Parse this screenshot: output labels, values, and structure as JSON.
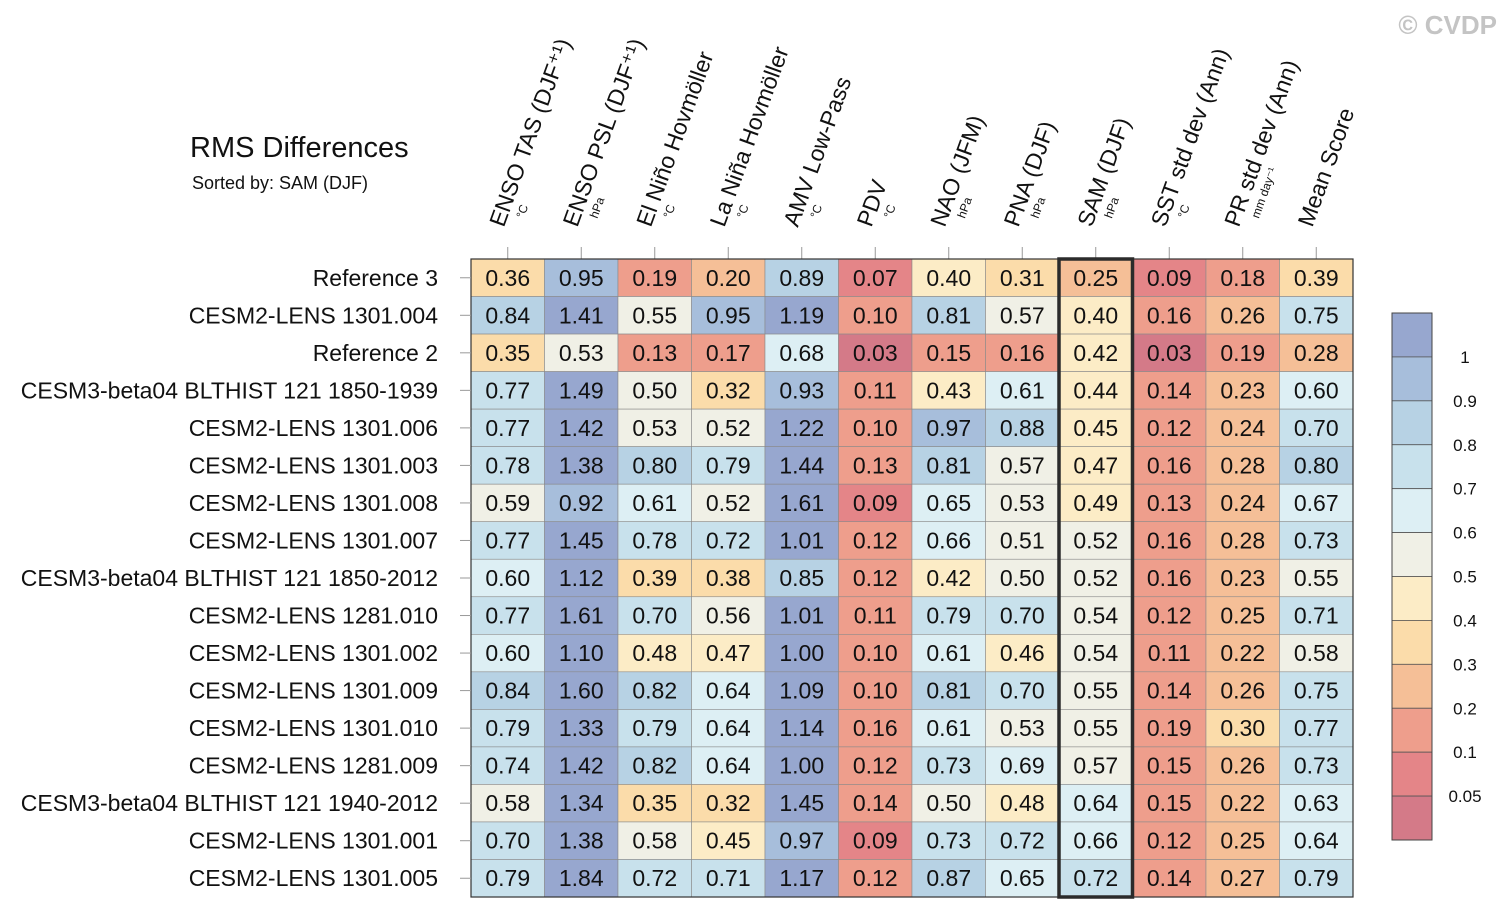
{
  "watermark": "© CVDP",
  "chart_data": {
    "type": "heatmap",
    "title": "RMS Differences",
    "subtitle": "Sorted by: SAM (DJF)",
    "columns": [
      {
        "label": "ENSO TAS (DJF⁺¹)",
        "unit": "°C"
      },
      {
        "label": "ENSO PSL (DJF⁺¹)",
        "unit": "hPa"
      },
      {
        "label": "El Niño Hovmöller",
        "unit": "°C"
      },
      {
        "label": "La Niña Hovmöller",
        "unit": "°C"
      },
      {
        "label": "AMV Low-Pass",
        "unit": "°C"
      },
      {
        "label": "PDV",
        "unit": "°C"
      },
      {
        "label": "NAO (JFM)",
        "unit": "hPa"
      },
      {
        "label": "PNA (DJF)",
        "unit": "hPa"
      },
      {
        "label": "SAM (DJF)",
        "unit": "hPa"
      },
      {
        "label": "SST std dev (Ann)",
        "unit": "°C"
      },
      {
        "label": "PR std dev (Ann)",
        "unit": "mm day⁻¹"
      },
      {
        "label": "Mean Score",
        "unit": ""
      }
    ],
    "highlighted_column": "SAM (DJF)",
    "rows": [
      "Reference 3",
      "CESM2-LENS 1301.004",
      "Reference 2",
      "CESM3-beta04 BLTHIST 121 1850-1939",
      "CESM2-LENS 1301.006",
      "CESM2-LENS 1301.003",
      "CESM2-LENS 1301.008",
      "CESM2-LENS 1301.007",
      "CESM3-beta04 BLTHIST 121 1850-2012",
      "CESM2-LENS 1281.010",
      "CESM2-LENS 1301.002",
      "CESM2-LENS 1301.009",
      "CESM2-LENS 1301.010",
      "CESM2-LENS 1281.009",
      "CESM3-beta04 BLTHIST 121 1940-2012",
      "CESM2-LENS 1301.001",
      "CESM2-LENS 1301.005"
    ],
    "values": [
      [
        "0.36",
        "0.95",
        "0.19",
        "0.20",
        "0.89",
        "0.07",
        "0.40",
        "0.31",
        "0.25",
        "0.09",
        "0.18",
        "0.39"
      ],
      [
        "0.84",
        "1.41",
        "0.55",
        "0.95",
        "1.19",
        "0.10",
        "0.81",
        "0.57",
        "0.40",
        "0.16",
        "0.26",
        "0.75"
      ],
      [
        "0.35",
        "0.53",
        "0.13",
        "0.17",
        "0.68",
        "0.03",
        "0.15",
        "0.16",
        "0.42",
        "0.03",
        "0.19",
        "0.28"
      ],
      [
        "0.77",
        "1.49",
        "0.50",
        "0.32",
        "0.93",
        "0.11",
        "0.43",
        "0.61",
        "0.44",
        "0.14",
        "0.23",
        "0.60"
      ],
      [
        "0.77",
        "1.42",
        "0.53",
        "0.52",
        "1.22",
        "0.10",
        "0.97",
        "0.88",
        "0.45",
        "0.12",
        "0.24",
        "0.70"
      ],
      [
        "0.78",
        "1.38",
        "0.80",
        "0.79",
        "1.44",
        "0.13",
        "0.81",
        "0.57",
        "0.47",
        "0.16",
        "0.28",
        "0.80"
      ],
      [
        "0.59",
        "0.92",
        "0.61",
        "0.52",
        "1.61",
        "0.09",
        "0.65",
        "0.53",
        "0.49",
        "0.13",
        "0.24",
        "0.67"
      ],
      [
        "0.77",
        "1.45",
        "0.78",
        "0.72",
        "1.01",
        "0.12",
        "0.66",
        "0.51",
        "0.52",
        "0.16",
        "0.28",
        "0.73"
      ],
      [
        "0.60",
        "1.12",
        "0.39",
        "0.38",
        "0.85",
        "0.12",
        "0.42",
        "0.50",
        "0.52",
        "0.16",
        "0.23",
        "0.55"
      ],
      [
        "0.77",
        "1.61",
        "0.70",
        "0.56",
        "1.01",
        "0.11",
        "0.79",
        "0.70",
        "0.54",
        "0.12",
        "0.25",
        "0.71"
      ],
      [
        "0.60",
        "1.10",
        "0.48",
        "0.47",
        "1.00",
        "0.10",
        "0.61",
        "0.46",
        "0.54",
        "0.11",
        "0.22",
        "0.58"
      ],
      [
        "0.84",
        "1.60",
        "0.82",
        "0.64",
        "1.09",
        "0.10",
        "0.81",
        "0.70",
        "0.55",
        "0.14",
        "0.26",
        "0.75"
      ],
      [
        "0.79",
        "1.33",
        "0.79",
        "0.64",
        "1.14",
        "0.16",
        "0.61",
        "0.53",
        "0.55",
        "0.19",
        "0.30",
        "0.77"
      ],
      [
        "0.74",
        "1.42",
        "0.82",
        "0.64",
        "1.00",
        "0.12",
        "0.73",
        "0.69",
        "0.57",
        "0.15",
        "0.26",
        "0.73"
      ],
      [
        "0.58",
        "1.34",
        "0.35",
        "0.32",
        "1.45",
        "0.14",
        "0.50",
        "0.48",
        "0.64",
        "0.15",
        "0.22",
        "0.63"
      ],
      [
        "0.70",
        "1.38",
        "0.58",
        "0.45",
        "0.97",
        "0.09",
        "0.73",
        "0.72",
        "0.66",
        "0.12",
        "0.25",
        "0.64"
      ],
      [
        "0.79",
        "1.84",
        "0.72",
        "0.71",
        "1.17",
        "0.12",
        "0.87",
        "0.65",
        "0.72",
        "0.14",
        "0.27",
        "0.79"
      ]
    ],
    "colorbar": {
      "ticks": [
        "1",
        "0.9",
        "0.8",
        "0.7",
        "0.6",
        "0.5",
        "0.4",
        "0.3",
        "0.2",
        "0.1",
        "0.05"
      ],
      "colors": [
        "#97a7cf",
        "#a7bedb",
        "#b7d2e4",
        "#c8e1ec",
        "#ddeff4",
        "#f0f0e6",
        "#fcecc6",
        "#fbdcaa",
        "#f5bf97",
        "#ee9e8c",
        "#e48588",
        "#d47a88"
      ]
    }
  }
}
